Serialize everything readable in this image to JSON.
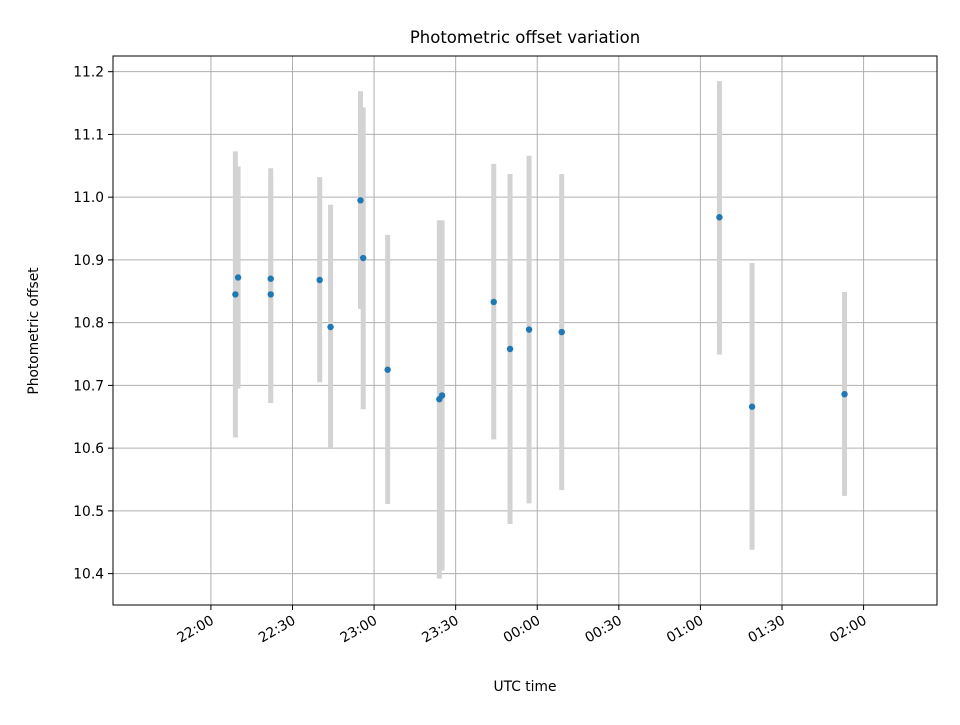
{
  "chart_data": {
    "type": "scatter",
    "title": "Photometric offset variation",
    "xlabel": "UTC time",
    "ylabel": "Photometric offset",
    "x_ticks": [
      "22:00",
      "22:30",
      "23:00",
      "23:30",
      "00:00",
      "00:30",
      "01:00",
      "01:30",
      "02:00"
    ],
    "y_ticks": [
      "10.4",
      "10.5",
      "10.6",
      "10.7",
      "10.8",
      "10.9",
      "11.0",
      "11.1",
      "11.2"
    ],
    "ylim": [
      10.35,
      11.225
    ],
    "xlim_minutes": [
      -2.6,
      2.45
    ],
    "grid": true,
    "colors": {
      "point": "#1f77b4",
      "errorbar": "#d3d3d3",
      "grid": "#b0b0b0"
    },
    "points": [
      {
        "t": "22:09",
        "y": 10.845,
        "ylow": 10.617,
        "yhigh": 11.073
      },
      {
        "t": "22:10",
        "y": 10.872,
        "ylow": 10.695,
        "yhigh": 11.049
      },
      {
        "t": "22:22",
        "y": 10.845,
        "ylow": 10.672,
        "yhigh": 11.018
      },
      {
        "t": "22:22",
        "y": 10.87,
        "ylow": 10.694,
        "yhigh": 11.046
      },
      {
        "t": "22:40",
        "y": 10.868,
        "ylow": 10.705,
        "yhigh": 11.032
      },
      {
        "t": "22:44",
        "y": 10.793,
        "ylow": 10.6,
        "yhigh": 10.988
      },
      {
        "t": "22:55",
        "y": 10.995,
        "ylow": 10.822,
        "yhigh": 11.169
      },
      {
        "t": "22:56",
        "y": 10.903,
        "ylow": 10.662,
        "yhigh": 11.143
      },
      {
        "t": "23:05",
        "y": 10.725,
        "ylow": 10.511,
        "yhigh": 10.94
      },
      {
        "t": "23:24",
        "y": 10.678,
        "ylow": 10.392,
        "yhigh": 10.963
      },
      {
        "t": "23:25",
        "y": 10.684,
        "ylow": 10.405,
        "yhigh": 10.963
      },
      {
        "t": "23:44",
        "y": 10.833,
        "ylow": 10.614,
        "yhigh": 11.053
      },
      {
        "t": "23:50",
        "y": 10.758,
        "ylow": 10.479,
        "yhigh": 11.037
      },
      {
        "t": "23:57",
        "y": 10.789,
        "ylow": 10.512,
        "yhigh": 11.066
      },
      {
        "t": "00:09",
        "y": 10.785,
        "ylow": 10.533,
        "yhigh": 11.037
      },
      {
        "t": "01:07",
        "y": 10.968,
        "ylow": 10.749,
        "yhigh": 11.185
      },
      {
        "t": "01:19",
        "y": 10.666,
        "ylow": 10.438,
        "yhigh": 10.895
      },
      {
        "t": "01:53",
        "y": 10.686,
        "ylow": 10.524,
        "yhigh": 10.849
      }
    ]
  }
}
